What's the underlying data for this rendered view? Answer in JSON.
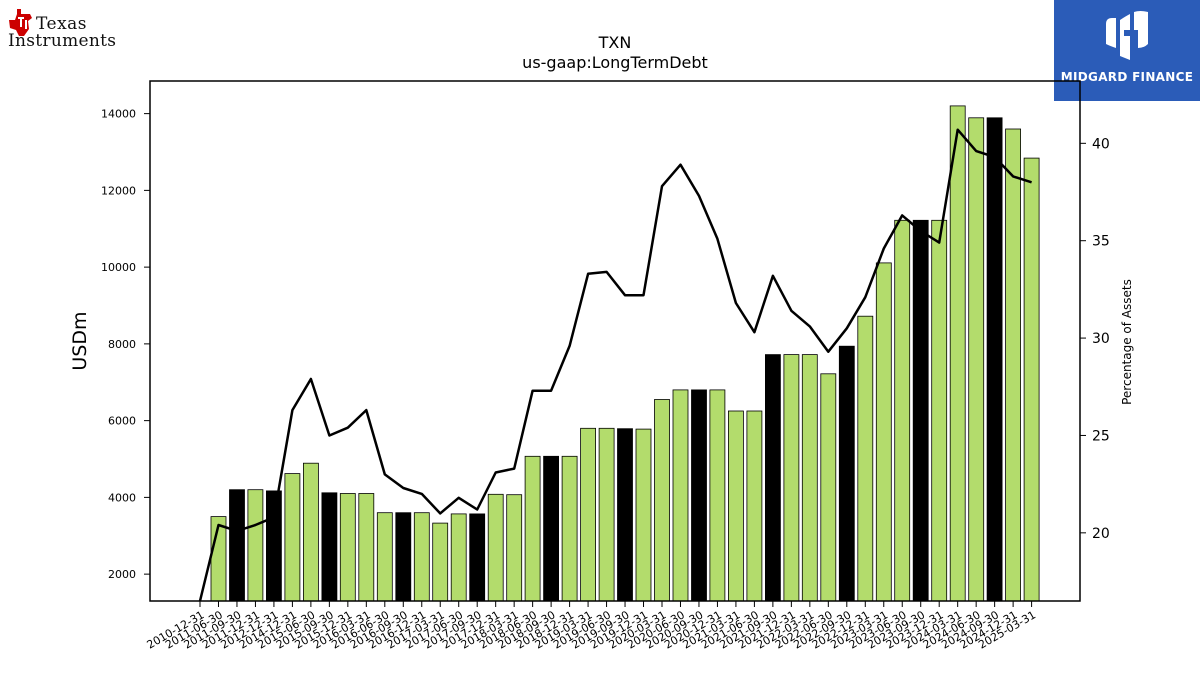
{
  "brand": {
    "company_name_line1": "Texas",
    "company_name_line2": "Instruments",
    "sponsor_name": "MIDGARD FINANCE"
  },
  "colors": {
    "bar_default": "#b3dc6c",
    "bar_highlight": "#000000",
    "line": "#000000",
    "sponsor_bg": "#2b5cb8",
    "ti_red": "#cc0000"
  },
  "chart_data": {
    "type": "bar",
    "title": "TXN",
    "subtitle": "us-gaap:LongTermDebt",
    "ylabel": "USDm",
    "y2label": "Percentage of Assets",
    "ylim": [
      1300,
      14850
    ],
    "y2lim": [
      16.5,
      43.2
    ],
    "yticks": [
      2000,
      4000,
      6000,
      8000,
      10000,
      12000,
      14000
    ],
    "y2ticks": [
      20,
      25,
      30,
      35,
      40
    ],
    "categories": [
      "2010-12-31",
      "2011-06-30",
      "2011-09-30",
      "2011-12-31",
      "2012-12-31",
      "2014-12-31",
      "2015-06-30",
      "2015-09-30",
      "2015-12-31",
      "2016-03-31",
      "2016-06-30",
      "2016-09-30",
      "2016-12-31",
      "2017-03-31",
      "2017-06-30",
      "2017-09-30",
      "2017-12-31",
      "2018-03-31",
      "2018-06-30",
      "2018-09-30",
      "2018-12-31",
      "2019-03-31",
      "2019-06-30",
      "2019-09-30",
      "2019-12-31",
      "2020-03-31",
      "2020-06-30",
      "2020-09-30",
      "2020-12-31",
      "2021-03-31",
      "2021-06-30",
      "2021-09-30",
      "2021-12-31",
      "2022-03-31",
      "2022-06-30",
      "2022-09-30",
      "2022-12-31",
      "2023-03-31",
      "2023-06-30",
      "2023-09-30",
      "2023-12-31",
      "2024-03-31",
      "2024-06-30",
      "2024-09-30",
      "2024-12-31",
      "2025-03-31"
    ],
    "series": [
      {
        "kind": "bar",
        "values": [
          null,
          3500,
          4200,
          4200,
          4170,
          4620,
          4890,
          4120,
          4100,
          4100,
          3600,
          3600,
          3600,
          3330,
          3570,
          3570,
          4080,
          4070,
          5070,
          5070,
          5070,
          5800,
          5800,
          5790,
          5780,
          6550,
          6800,
          6800,
          6800,
          6250,
          6250,
          7720,
          7720,
          7720,
          7220,
          7940,
          8720,
          10110,
          11220,
          11220,
          11220,
          14200,
          13890,
          13890,
          13600,
          12840
        ],
        "highlight": [
          false,
          false,
          true,
          false,
          true,
          false,
          false,
          true,
          false,
          false,
          false,
          true,
          false,
          false,
          false,
          true,
          false,
          false,
          false,
          true,
          false,
          false,
          false,
          true,
          false,
          false,
          false,
          true,
          false,
          false,
          false,
          true,
          false,
          false,
          false,
          true,
          false,
          false,
          false,
          true,
          false,
          false,
          false,
          true,
          false,
          false
        ]
      },
      {
        "kind": "line",
        "axis": "right",
        "values": [
          16.5,
          20.4,
          20.1,
          20.4,
          20.8,
          26.3,
          27.9,
          25.0,
          25.4,
          26.3,
          23.0,
          22.3,
          22.0,
          21.0,
          21.8,
          21.2,
          23.1,
          23.3,
          27.3,
          27.3,
          29.6,
          33.3,
          33.4,
          32.2,
          32.2,
          37.8,
          38.9,
          37.3,
          35.1,
          31.8,
          30.3,
          33.2,
          31.4,
          30.6,
          29.3,
          30.5,
          32.1,
          34.6,
          36.3,
          35.5,
          34.9,
          40.7,
          39.6,
          39.3,
          38.3,
          38.0
        ]
      }
    ],
    "grid": false
  }
}
